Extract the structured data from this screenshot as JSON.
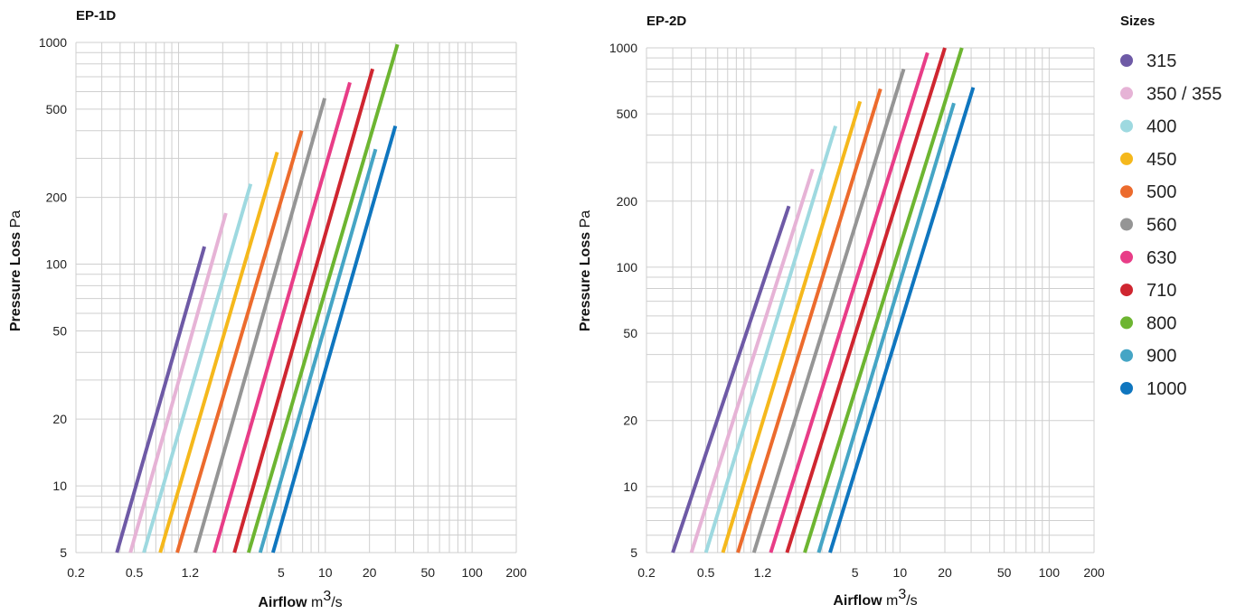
{
  "chart_data": [
    {
      "type": "line",
      "title": "EP-1D",
      "xlabel": {
        "bold": "Airflow",
        "unit_prefix": "m",
        "unit_sup": "3",
        "unit_suffix": "/s"
      },
      "ylabel": {
        "bold": "Pressure Loss",
        "unit": "Pa"
      },
      "x_scale": "log",
      "y_scale": "log",
      "xlim": [
        0.2,
        200
      ],
      "ylim": [
        5,
        1000
      ],
      "x_ticks": [
        0.2,
        0.5,
        1.2,
        5,
        10,
        20,
        50,
        100,
        200
      ],
      "x_tick_labels": [
        "0.2",
        "0.5",
        "1.2",
        "5",
        "10",
        "20",
        "50",
        "100",
        "200"
      ],
      "y_ticks": [
        5,
        10,
        20,
        50,
        100,
        200,
        500,
        1000
      ],
      "y_tick_labels": [
        "5",
        "10",
        "20",
        "50",
        "100",
        "200",
        "500",
        "1000"
      ],
      "grid": true,
      "series": [
        {
          "name": "315",
          "color": "#6e5aa6",
          "x": [
            0.38,
            1.5
          ],
          "y": [
            5,
            120
          ]
        },
        {
          "name": "350 / 355",
          "color": "#e6b3d6",
          "x": [
            0.47,
            2.1
          ],
          "y": [
            5,
            170
          ]
        },
        {
          "name": "400",
          "color": "#9ed9e0",
          "x": [
            0.58,
            3.1
          ],
          "y": [
            5,
            230
          ]
        },
        {
          "name": "450",
          "color": "#f5b81c",
          "x": [
            0.75,
            4.7
          ],
          "y": [
            5,
            320
          ]
        },
        {
          "name": "500",
          "color": "#ec6b2d",
          "x": [
            0.98,
            6.9
          ],
          "y": [
            5,
            400
          ]
        },
        {
          "name": "560",
          "color": "#959595",
          "x": [
            1.3,
            9.9
          ],
          "y": [
            5,
            560
          ]
        },
        {
          "name": "630",
          "color": "#e83d87",
          "x": [
            1.75,
            14.7
          ],
          "y": [
            5,
            660
          ]
        },
        {
          "name": "710",
          "color": "#cf2630",
          "x": [
            2.4,
            21
          ],
          "y": [
            5,
            760
          ]
        },
        {
          "name": "800",
          "color": "#6db531",
          "x": [
            3.0,
            31
          ],
          "y": [
            5,
            980
          ]
        },
        {
          "name": "900",
          "color": "#45a5c5",
          "x": [
            3.6,
            22
          ],
          "y": [
            5,
            330
          ]
        },
        {
          "name": "1000",
          "color": "#0f76bf",
          "x": [
            4.4,
            30
          ],
          "y": [
            5,
            420
          ]
        }
      ]
    },
    {
      "type": "line",
      "title": "EP-2D",
      "xlabel": {
        "bold": "Airflow",
        "unit_prefix": "m",
        "unit_sup": "3",
        "unit_suffix": "/s"
      },
      "ylabel": {
        "bold": "Pressure Loss",
        "unit": "Pa"
      },
      "x_scale": "log",
      "y_scale": "log",
      "xlim": [
        0.2,
        200
      ],
      "ylim": [
        5,
        1000
      ],
      "x_ticks": [
        0.2,
        0.5,
        1.2,
        5,
        10,
        20,
        50,
        100,
        200
      ],
      "x_tick_labels": [
        "0.2",
        "0.5",
        "1.2",
        "5",
        "10",
        "20",
        "50",
        "100",
        "200"
      ],
      "y_ticks": [
        5,
        10,
        20,
        50,
        100,
        200,
        500,
        1000
      ],
      "y_tick_labels": [
        "5",
        "10",
        "20",
        "50",
        "100",
        "200",
        "500",
        "1000"
      ],
      "grid": true,
      "series": [
        {
          "name": "315",
          "color": "#6e5aa6",
          "x": [
            0.3,
            1.8
          ],
          "y": [
            5,
            190
          ]
        },
        {
          "name": "350 / 355",
          "color": "#e6b3d6",
          "x": [
            0.4,
            2.6
          ],
          "y": [
            5,
            280
          ]
        },
        {
          "name": "400",
          "color": "#9ed9e0",
          "x": [
            0.5,
            3.7
          ],
          "y": [
            5,
            440
          ]
        },
        {
          "name": "450",
          "color": "#f5b81c",
          "x": [
            0.65,
            5.4
          ],
          "y": [
            5,
            570
          ]
        },
        {
          "name": "500",
          "color": "#ec6b2d",
          "x": [
            0.82,
            7.4
          ],
          "y": [
            5,
            650
          ]
        },
        {
          "name": "560",
          "color": "#959595",
          "x": [
            1.05,
            10.6
          ],
          "y": [
            5,
            800
          ]
        },
        {
          "name": "630",
          "color": "#e83d87",
          "x": [
            1.36,
            15.3
          ],
          "y": [
            5,
            950
          ]
        },
        {
          "name": "710",
          "color": "#cf2630",
          "x": [
            1.75,
            20
          ],
          "y": [
            5,
            1000
          ]
        },
        {
          "name": "800",
          "color": "#6db531",
          "x": [
            2.3,
            26
          ],
          "y": [
            5,
            1000
          ]
        },
        {
          "name": "900",
          "color": "#45a5c5",
          "x": [
            2.85,
            23
          ],
          "y": [
            5,
            560
          ]
        },
        {
          "name": "1000",
          "color": "#0f76bf",
          "x": [
            3.4,
            31
          ],
          "y": [
            5,
            660
          ]
        }
      ]
    }
  ],
  "legend": {
    "title": "Sizes",
    "items": [
      {
        "label": "315",
        "color": "#6e5aa6"
      },
      {
        "label": "350 / 355",
        "color": "#e6b3d6"
      },
      {
        "label": "400",
        "color": "#9ed9e0"
      },
      {
        "label": "450",
        "color": "#f5b81c"
      },
      {
        "label": "500",
        "color": "#ec6b2d"
      },
      {
        "label": "560",
        "color": "#959595"
      },
      {
        "label": "630",
        "color": "#e83d87"
      },
      {
        "label": "710",
        "color": "#cf2630"
      },
      {
        "label": "800",
        "color": "#6db531"
      },
      {
        "label": "900",
        "color": "#45a5c5"
      },
      {
        "label": "1000",
        "color": "#0f76bf"
      }
    ]
  }
}
